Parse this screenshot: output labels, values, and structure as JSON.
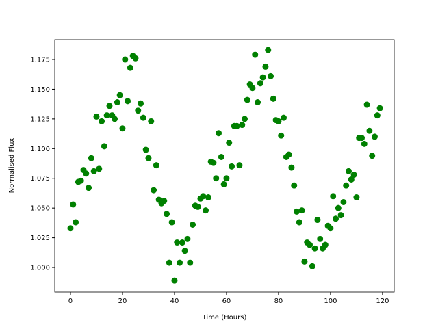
{
  "chart_data": {
    "type": "scatter",
    "xlabel": "Time (Hours)",
    "ylabel": "Normalised Flux",
    "color": "#008000",
    "x": [
      0,
      1,
      2,
      3,
      4,
      5,
      6,
      7,
      8,
      9,
      10,
      11,
      12,
      13,
      14,
      15,
      16,
      17,
      18,
      19,
      20,
      21,
      22,
      23,
      24,
      25,
      26,
      27,
      28,
      29,
      30,
      31,
      32,
      33,
      34,
      35,
      36,
      37,
      38,
      39,
      40,
      41,
      42,
      43,
      44,
      45,
      46,
      47,
      48,
      49,
      50,
      51,
      52,
      53,
      54,
      55,
      56,
      57,
      58,
      59,
      60,
      61,
      62,
      63,
      64,
      65,
      66,
      67,
      68,
      69,
      70,
      71,
      72,
      73,
      74,
      75,
      76,
      77,
      78,
      79,
      80,
      81,
      82,
      83,
      84,
      85,
      86,
      87,
      88,
      89,
      90,
      91,
      92,
      93,
      94,
      95,
      96,
      97,
      98,
      99,
      100,
      101,
      102,
      103,
      104,
      105,
      106,
      107,
      108,
      109,
      110,
      111,
      112,
      113,
      114,
      115,
      116,
      117,
      118,
      119
    ],
    "values": [
      1.033,
      1.053,
      1.038,
      1.072,
      1.073,
      1.082,
      1.079,
      1.067,
      1.092,
      1.081,
      1.127,
      1.083,
      1.123,
      1.102,
      1.128,
      1.136,
      1.128,
      1.125,
      1.139,
      1.145,
      1.117,
      1.175,
      1.14,
      1.168,
      1.178,
      1.176,
      1.132,
      1.138,
      1.126,
      1.099,
      1.092,
      1.123,
      1.065,
      1.086,
      1.057,
      1.054,
      1.056,
      1.045,
      1.004,
      1.038,
      0.989,
      1.021,
      1.004,
      1.021,
      1.014,
      1.024,
      1.004,
      1.036,
      1.052,
      1.051,
      1.058,
      1.06,
      1.048,
      1.059,
      1.089,
      1.088,
      1.075,
      1.113,
      1.093,
      1.07,
      1.075,
      1.105,
      1.085,
      1.119,
      1.119,
      1.086,
      1.12,
      1.125,
      1.141,
      1.154,
      1.151,
      1.179,
      1.139,
      1.155,
      1.16,
      1.169,
      1.183,
      1.161,
      1.142,
      1.124,
      1.123,
      1.111,
      1.126,
      1.093,
      1.095,
      1.084,
      1.069,
      1.047,
      1.038,
      1.048,
      1.005,
      1.021,
      1.019,
      1.001,
      1.016,
      1.04,
      1.024,
      1.016,
      1.019,
      1.035,
      1.033,
      1.06,
      1.041,
      1.05,
      1.044,
      1.055,
      1.069,
      1.081,
      1.074,
      1.078,
      1.059,
      1.109,
      1.109,
      1.104,
      1.137,
      1.115,
      1.094,
      1.11,
      1.128,
      1.134
    ],
    "xlim": [
      -6.05,
      124.5
    ],
    "xticks": [
      0,
      20,
      40,
      60,
      80,
      100,
      120
    ],
    "ylim": [
      0.9793,
      1.1917
    ],
    "yticks": [
      {
        "value": 1.0,
        "label": "1.000"
      },
      1.025,
      {
        "value": 1.05,
        "label": "1.050"
      },
      1.075,
      {
        "value": 1.1,
        "label": "1.100"
      },
      1.125,
      {
        "value": 1.15,
        "label": "1.150"
      },
      1.175
    ]
  }
}
